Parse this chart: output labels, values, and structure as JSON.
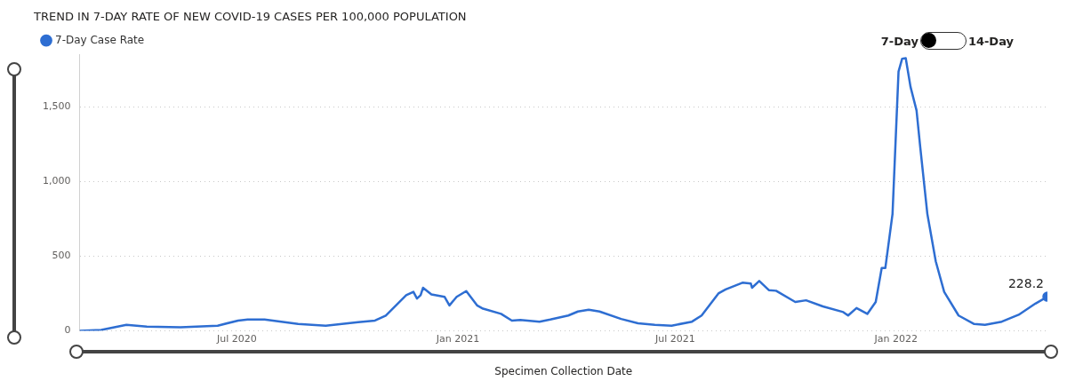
{
  "chart_data": {
    "type": "line",
    "title": "TREND IN 7-DAY RATE OF NEW COVID-19 CASES PER 100,000 POPULATION",
    "xlabel": "Specimen Collection Date",
    "annotations": [
      "7-Day",
      "14-Day"
    ],
    "legend": "top left",
    "grid": "y",
    "ylim": [
      0,
      1850
    ],
    "yticks": [
      0,
      500,
      {
        "value": 1000,
        "label": "1,000"
      },
      {
        "value": 1500,
        "label": "1,500"
      }
    ],
    "xlim": [
      "2020-02-21",
      "2022-05-07"
    ],
    "xticks": [
      {
        "value": "2020-07-01",
        "label": "Jul 2020"
      },
      {
        "value": "2021-01-01",
        "label": "Jan 2021"
      },
      {
        "value": "2021-07-01",
        "label": "Jul 2021"
      },
      {
        "value": "2022-01-01",
        "label": "Jan 2022"
      }
    ],
    "x": [
      "2020-02-21",
      "2020-03-10",
      "2020-03-31",
      "2020-04-17",
      "2020-05-15",
      "2020-06-15",
      "2020-07-02",
      "2020-07-10",
      "2020-07-24",
      "2020-08-21",
      "2020-09-13",
      "2020-10-10",
      "2020-10-24",
      "2020-11-02",
      "2020-11-19",
      "2020-11-25",
      "2020-11-28",
      "2020-12-01",
      "2020-12-03",
      "2020-12-10",
      "2020-12-21",
      "2020-12-25",
      "2020-12-31",
      "2021-01-08",
      "2021-01-17",
      "2021-01-22",
      "2021-02-06",
      "2021-02-15",
      "2021-02-22",
      "2021-03-10",
      "2021-03-19",
      "2021-04-03",
      "2021-04-11",
      "2021-04-20",
      "2021-04-29",
      "2021-05-17",
      "2021-05-31",
      "2021-06-14",
      "2021-06-28",
      "2021-07-15",
      "2021-07-23",
      "2021-08-06",
      "2021-08-12",
      "2021-08-26",
      "2021-09-02",
      "2021-09-03",
      "2021-09-09",
      "2021-09-17",
      "2021-09-23",
      "2021-10-09",
      "2021-10-18",
      "2021-11-01",
      "2021-11-18",
      "2021-11-22",
      "2021-11-29",
      "2021-12-08",
      "2021-12-15",
      "2021-12-20",
      "2021-12-23",
      "2021-12-29",
      "2022-01-03",
      "2022-01-06",
      "2022-01-09",
      "2022-01-13",
      "2022-01-18",
      "2022-01-21",
      "2022-01-27",
      "2022-02-03",
      "2022-02-10",
      "2022-02-22",
      "2022-03-07",
      "2022-03-16",
      "2022-03-30",
      "2022-04-13",
      "2022-04-27",
      "2022-05-07"
    ],
    "series": [
      {
        "name": "7-Day Case Rate",
        "color": "#2e6ed2",
        "values": [
          0,
          5,
          39,
          27,
          23,
          34,
          68,
          75,
          75,
          45,
          34,
          57,
          68,
          102,
          238,
          261,
          216,
          238,
          288,
          243,
          227,
          170,
          227,
          266,
          170,
          148,
          113,
          68,
          73,
          61,
          75,
          102,
          129,
          141,
          129,
          79,
          50,
          39,
          34,
          61,
          102,
          250,
          277,
          322,
          316,
          288,
          334,
          272,
          268,
          193,
          204,
          163,
          125,
          102,
          152,
          113,
          193,
          420,
          420,
          783,
          1737,
          1823,
          1827,
          1634,
          1476,
          1237,
          783,
          465,
          261,
          102,
          45,
          39,
          61,
          107,
          182,
          228.2
        ],
        "value_labels": [
          null,
          null,
          null,
          null,
          null,
          null,
          null,
          null,
          null,
          null,
          null,
          null,
          null,
          null,
          null,
          null,
          null,
          null,
          null,
          null,
          null,
          null,
          null,
          null,
          null,
          null,
          null,
          null,
          null,
          null,
          null,
          null,
          null,
          null,
          null,
          null,
          null,
          null,
          null,
          null,
          null,
          null,
          null,
          null,
          null,
          null,
          null,
          null,
          null,
          null,
          null,
          null,
          null,
          null,
          null,
          null,
          null,
          null,
          null,
          null,
          null,
          null,
          null,
          null,
          null,
          null,
          null,
          null,
          null,
          null,
          null,
          null,
          null,
          null,
          null,
          "228.2"
        ]
      }
    ]
  }
}
